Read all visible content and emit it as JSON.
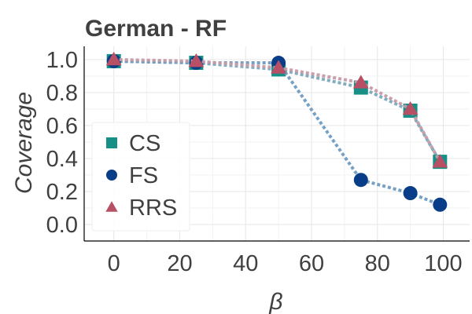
{
  "chart_data": {
    "type": "line",
    "title": "German - RF",
    "xlabel": "β",
    "ylabel": "Coverage",
    "xlim": [
      -9,
      108
    ],
    "ylim": [
      -0.1,
      1.08
    ],
    "xticks": [
      0,
      20,
      40,
      60,
      80,
      100
    ],
    "yticks": [
      0.0,
      0.2,
      0.4,
      0.6,
      0.8,
      1.0
    ],
    "xtick_labels": [
      "0",
      "20",
      "40",
      "60",
      "80",
      "100"
    ],
    "ytick_labels": [
      "0.0",
      "0.2",
      "0.4",
      "0.6",
      "0.8",
      "1.0"
    ],
    "grid": true,
    "legend_position": "left",
    "x": [
      0,
      25,
      50,
      75,
      90,
      99
    ],
    "series": [
      {
        "name": "CS",
        "marker": "square",
        "color": "#168f86",
        "line_color": "#7aa9bd",
        "values": [
          0.99,
          0.98,
          0.94,
          0.83,
          0.69,
          0.38
        ]
      },
      {
        "name": "FS",
        "marker": "circle",
        "color": "#0a3d87",
        "line_color": "#6f9cc2",
        "values": [
          0.99,
          0.98,
          0.98,
          0.27,
          0.19,
          0.12
        ]
      },
      {
        "name": "RRS",
        "marker": "triangle",
        "color": "#b85065",
        "line_color": "#c79aa6",
        "values": [
          1.0,
          0.99,
          0.95,
          0.86,
          0.7,
          0.38
        ]
      }
    ]
  }
}
